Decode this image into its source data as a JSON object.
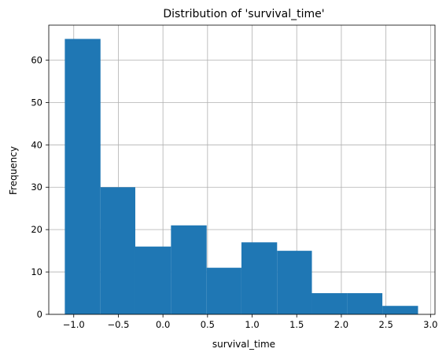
{
  "chart_data": {
    "type": "bar",
    "title": "Distribution of 'survival_time'",
    "xlabel": "survival_time",
    "ylabel": "Frequency",
    "xlim": [
      -1.28,
      3.05
    ],
    "ylim": [
      0,
      68.25
    ],
    "grid": true,
    "bar_color": "#1f77b4",
    "bins": [
      {
        "x0": -1.1,
        "x1": -0.7,
        "count": 65
      },
      {
        "x0": -0.7,
        "x1": -0.31,
        "count": 30
      },
      {
        "x0": -0.31,
        "x1": 0.09,
        "count": 16
      },
      {
        "x0": 0.09,
        "x1": 0.49,
        "count": 21
      },
      {
        "x0": 0.49,
        "x1": 0.88,
        "count": 11
      },
      {
        "x0": 0.88,
        "x1": 1.28,
        "count": 17
      },
      {
        "x0": 1.28,
        "x1": 1.67,
        "count": 15
      },
      {
        "x0": 1.67,
        "x1": 2.07,
        "count": 5
      },
      {
        "x0": 2.07,
        "x1": 2.46,
        "count": 5
      },
      {
        "x0": 2.46,
        "x1": 2.86,
        "count": 2
      }
    ],
    "x_ticks": [
      {
        "value": -1.0,
        "label": "−1.0"
      },
      {
        "value": -0.5,
        "label": "−0.5"
      },
      {
        "value": 0.0,
        "label": "0.0"
      },
      {
        "value": 0.5,
        "label": "0.5"
      },
      {
        "value": 1.0,
        "label": "1.0"
      },
      {
        "value": 1.5,
        "label": "1.5"
      },
      {
        "value": 2.0,
        "label": "2.0"
      },
      {
        "value": 2.5,
        "label": "2.5"
      },
      {
        "value": 3.0,
        "label": "3.0"
      }
    ],
    "y_ticks": [
      {
        "value": 0,
        "label": "0"
      },
      {
        "value": 10,
        "label": "10"
      },
      {
        "value": 20,
        "label": "20"
      },
      {
        "value": 30,
        "label": "30"
      },
      {
        "value": 40,
        "label": "40"
      },
      {
        "value": 50,
        "label": "50"
      },
      {
        "value": 60,
        "label": "60"
      }
    ]
  }
}
